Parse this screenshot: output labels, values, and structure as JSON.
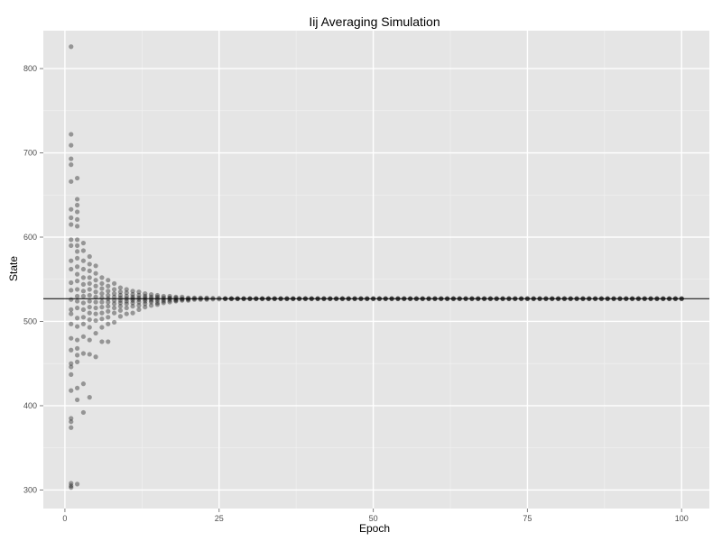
{
  "chart_data": {
    "type": "scatter",
    "title": "Iij Averaging Simulation",
    "xlabel": "Epoch",
    "ylabel": "State",
    "xlim": [
      -3.5,
      104.5
    ],
    "ylim": [
      278,
      845
    ],
    "x_ticks": [
      0,
      25,
      50,
      75,
      100
    ],
    "y_ticks": [
      300,
      400,
      500,
      600,
      700,
      800
    ],
    "x_tick_labels": [
      "0",
      "25",
      "50",
      "75",
      "100"
    ],
    "y_tick_labels": [
      "300",
      "400",
      "500",
      "600",
      "700",
      "800"
    ],
    "reference_line": 527,
    "grid": true,
    "background": "#e5e5e5",
    "grid_color": "#ffffff",
    "point_color": "#000000",
    "point_alpha": 0.35,
    "points": [
      [
        1,
        826
      ],
      [
        1,
        722
      ],
      [
        1,
        709
      ],
      [
        1,
        693
      ],
      [
        1,
        686
      ],
      [
        1,
        666
      ],
      [
        1,
        633
      ],
      [
        1,
        623
      ],
      [
        1,
        615
      ],
      [
        1,
        597
      ],
      [
        1,
        590
      ],
      [
        1,
        572
      ],
      [
        1,
        562
      ],
      [
        1,
        546
      ],
      [
        1,
        537
      ],
      [
        1,
        526
      ],
      [
        1,
        514
      ],
      [
        1,
        509
      ],
      [
        1,
        497
      ],
      [
        1,
        480
      ],
      [
        1,
        466
      ],
      [
        1,
        450
      ],
      [
        1,
        446
      ],
      [
        1,
        437
      ],
      [
        1,
        418
      ],
      [
        1,
        385
      ],
      [
        1,
        381
      ],
      [
        1,
        374
      ],
      [
        1,
        308
      ],
      [
        1,
        305
      ],
      [
        1,
        303
      ],
      [
        2,
        670
      ],
      [
        2,
        645
      ],
      [
        2,
        638
      ],
      [
        2,
        630
      ],
      [
        2,
        621
      ],
      [
        2,
        613
      ],
      [
        2,
        597
      ],
      [
        2,
        590
      ],
      [
        2,
        583
      ],
      [
        2,
        575
      ],
      [
        2,
        565
      ],
      [
        2,
        556
      ],
      [
        2,
        548
      ],
      [
        2,
        538
      ],
      [
        2,
        530
      ],
      [
        2,
        524
      ],
      [
        2,
        516
      ],
      [
        2,
        504
      ],
      [
        2,
        494
      ],
      [
        2,
        478
      ],
      [
        2,
        468
      ],
      [
        2,
        460
      ],
      [
        2,
        452
      ],
      [
        2,
        421
      ],
      [
        2,
        407
      ],
      [
        2,
        307
      ],
      [
        3,
        593
      ],
      [
        3,
        584
      ],
      [
        3,
        572
      ],
      [
        3,
        562
      ],
      [
        3,
        552
      ],
      [
        3,
        544
      ],
      [
        3,
        536
      ],
      [
        3,
        530
      ],
      [
        3,
        522
      ],
      [
        3,
        514
      ],
      [
        3,
        505
      ],
      [
        3,
        497
      ],
      [
        3,
        482
      ],
      [
        3,
        462
      ],
      [
        3,
        426
      ],
      [
        3,
        392
      ],
      [
        4,
        577
      ],
      [
        4,
        568
      ],
      [
        4,
        560
      ],
      [
        4,
        552
      ],
      [
        4,
        545
      ],
      [
        4,
        538
      ],
      [
        4,
        531
      ],
      [
        4,
        524
      ],
      [
        4,
        517
      ],
      [
        4,
        510
      ],
      [
        4,
        502
      ],
      [
        4,
        493
      ],
      [
        4,
        478
      ],
      [
        4,
        461
      ],
      [
        4,
        410
      ],
      [
        5,
        566
      ],
      [
        5,
        557
      ],
      [
        5,
        549
      ],
      [
        5,
        542
      ],
      [
        5,
        535
      ],
      [
        5,
        529
      ],
      [
        5,
        523
      ],
      [
        5,
        516
      ],
      [
        5,
        509
      ],
      [
        5,
        501
      ],
      [
        5,
        486
      ],
      [
        5,
        458
      ],
      [
        6,
        552
      ],
      [
        6,
        545
      ],
      [
        6,
        539
      ],
      [
        6,
        533
      ],
      [
        6,
        528
      ],
      [
        6,
        523
      ],
      [
        6,
        517
      ],
      [
        6,
        510
      ],
      [
        6,
        503
      ],
      [
        6,
        493
      ],
      [
        6,
        476
      ],
      [
        7,
        549
      ],
      [
        7,
        542
      ],
      [
        7,
        536
      ],
      [
        7,
        531
      ],
      [
        7,
        527
      ],
      [
        7,
        523
      ],
      [
        7,
        518
      ],
      [
        7,
        512
      ],
      [
        7,
        505
      ],
      [
        7,
        497
      ],
      [
        7,
        476
      ],
      [
        8,
        545
      ],
      [
        8,
        538
      ],
      [
        8,
        533
      ],
      [
        8,
        529
      ],
      [
        8,
        525
      ],
      [
        8,
        521
      ],
      [
        8,
        516
      ],
      [
        8,
        510
      ],
      [
        8,
        499
      ],
      [
        9,
        540
      ],
      [
        9,
        535
      ],
      [
        9,
        531
      ],
      [
        9,
        528
      ],
      [
        9,
        525
      ],
      [
        9,
        522
      ],
      [
        9,
        518
      ],
      [
        9,
        513
      ],
      [
        9,
        506
      ],
      [
        10,
        538
      ],
      [
        10,
        534
      ],
      [
        10,
        530
      ],
      [
        10,
        527
      ],
      [
        10,
        524
      ],
      [
        10,
        521
      ],
      [
        10,
        516
      ],
      [
        10,
        509
      ],
      [
        11,
        536
      ],
      [
        11,
        532
      ],
      [
        11,
        529
      ],
      [
        11,
        527
      ],
      [
        11,
        525
      ],
      [
        11,
        522
      ],
      [
        11,
        518
      ],
      [
        11,
        510
      ],
      [
        12,
        535
      ],
      [
        12,
        531
      ],
      [
        12,
        528
      ],
      [
        12,
        526
      ],
      [
        12,
        523
      ],
      [
        12,
        519
      ],
      [
        12,
        514
      ],
      [
        13,
        533
      ],
      [
        13,
        530
      ],
      [
        13,
        528
      ],
      [
        13,
        526
      ],
      [
        13,
        524
      ],
      [
        13,
        521
      ],
      [
        13,
        517
      ],
      [
        14,
        532
      ],
      [
        14,
        529
      ],
      [
        14,
        527
      ],
      [
        14,
        525
      ],
      [
        14,
        523
      ],
      [
        14,
        519
      ],
      [
        15,
        531
      ],
      [
        15,
        529
      ],
      [
        15,
        527
      ],
      [
        15,
        525
      ],
      [
        15,
        522
      ],
      [
        15,
        520
      ],
      [
        16,
        530
      ],
      [
        16,
        528
      ],
      [
        16,
        526
      ],
      [
        16,
        524
      ],
      [
        16,
        522
      ],
      [
        17,
        530
      ],
      [
        17,
        528
      ],
      [
        17,
        527
      ],
      [
        17,
        525
      ],
      [
        17,
        523
      ],
      [
        18,
        529
      ],
      [
        18,
        528
      ],
      [
        18,
        526
      ],
      [
        18,
        525
      ],
      [
        18,
        524
      ],
      [
        19,
        529
      ],
      [
        19,
        527
      ],
      [
        19,
        526
      ],
      [
        19,
        525
      ],
      [
        20,
        528
      ],
      [
        20,
        527
      ],
      [
        20,
        526
      ],
      [
        20,
        525
      ],
      [
        21,
        528
      ],
      [
        21,
        527
      ],
      [
        21,
        526
      ],
      [
        22,
        528
      ],
      [
        22,
        527
      ],
      [
        22,
        526
      ],
      [
        23,
        528
      ],
      [
        23,
        527
      ],
      [
        23,
        526
      ],
      [
        24,
        527.5
      ],
      [
        24,
        526.5
      ],
      [
        25,
        527.5
      ],
      [
        25,
        526.5
      ]
    ],
    "converged_points": {
      "x_from": 26,
      "x_to": 100,
      "value": 527
    }
  }
}
